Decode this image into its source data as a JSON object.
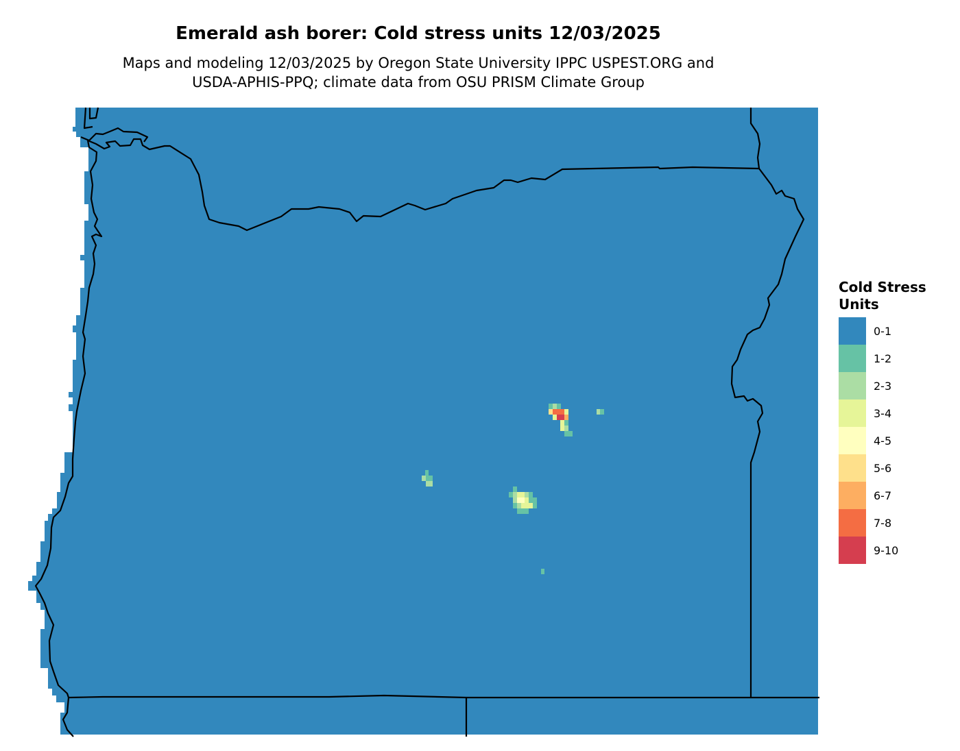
{
  "title": "Emerald ash borer: Cold stress units 12/03/2025",
  "subtitle_line1": "Maps and modeling 12/03/2025 by Oregon State University IPPC USPEST.ORG and",
  "subtitle_line2": "USDA-APHIS-PPQ; climate data from OSU PRISM Climate Group",
  "legend": {
    "title_line1": "Cold Stress",
    "title_line2": "Units",
    "items": [
      {
        "label": "0-1",
        "color": "#3288bd"
      },
      {
        "label": "1-2",
        "color": "#66c2a5"
      },
      {
        "label": "2-3",
        "color": "#abdda4"
      },
      {
        "label": "3-4",
        "color": "#e6f598"
      },
      {
        "label": "4-5",
        "color": "#ffffbf"
      },
      {
        "label": "5-6",
        "color": "#fee08b"
      },
      {
        "label": "6-7",
        "color": "#fdae61"
      },
      {
        "label": "7-8",
        "color": "#f46d43"
      },
      {
        "label": "9-10",
        "color": "#d53e4f"
      }
    ]
  },
  "map": {
    "region": "Oregon",
    "border_color": "#000000"
  }
}
